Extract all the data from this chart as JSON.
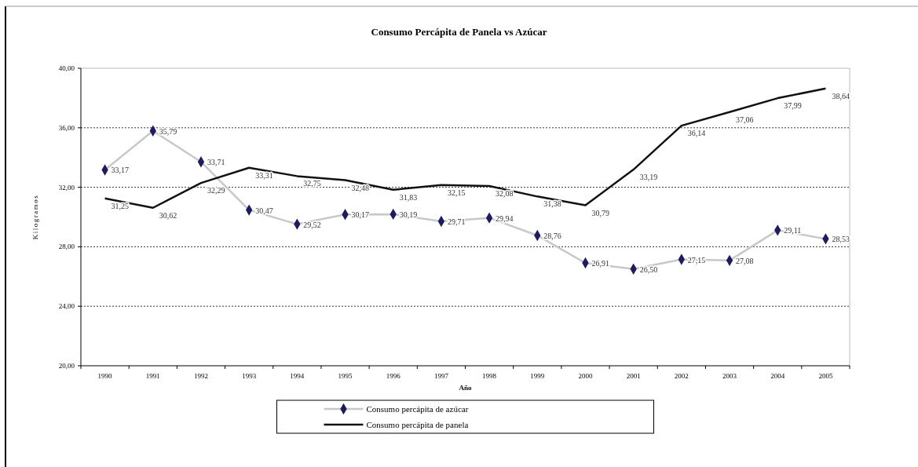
{
  "chart_data": {
    "type": "line",
    "title": "Consumo Percápita de Panela vs Azúcar",
    "xlabel": "Año",
    "ylabel": "Kilogramos",
    "categories": [
      "1990",
      "1991",
      "1992",
      "1993",
      "1994",
      "1995",
      "1996",
      "1997",
      "1998",
      "1999",
      "2000",
      "2001",
      "2002",
      "2003",
      "2004",
      "2005"
    ],
    "series": [
      {
        "name": "Consumo percápita de azúcar",
        "color": "#1c1c5e",
        "marker": "diamond",
        "line_style": "solid",
        "values": [
          33.17,
          35.79,
          33.71,
          30.47,
          29.52,
          30.17,
          30.19,
          29.71,
          29.94,
          28.76,
          26.91,
          26.5,
          27.15,
          27.08,
          29.11,
          28.53
        ],
        "value_labels": [
          "33,17",
          "35,79",
          "33,71",
          "30,47",
          "29,52",
          "30,17",
          "30,19",
          "29,71",
          "29,94",
          "28,76",
          "26,91",
          "26,50",
          "27,15",
          "27,08",
          "29,11",
          "28,53"
        ]
      },
      {
        "name": "Consumo percápita de panela",
        "color": "#111111",
        "marker": "none",
        "line_style": "solid",
        "values": [
          31.25,
          30.62,
          32.29,
          33.31,
          32.75,
          32.48,
          31.83,
          32.15,
          32.08,
          31.38,
          30.79,
          33.19,
          36.14,
          37.06,
          37.99,
          38.64
        ],
        "value_labels": [
          "31,25",
          "30,62",
          "32,29",
          "33,31",
          "32,75",
          "32,48",
          "31,83",
          "32,15",
          "32,08",
          "31,38",
          "30,79",
          "33,19",
          "36,14",
          "37,06",
          "37,99",
          "38,64"
        ]
      }
    ],
    "ylim": [
      20,
      40
    ],
    "yticks": [
      {
        "value": 20,
        "label": "20,00"
      },
      {
        "value": 24,
        "label": "24,00"
      },
      {
        "value": 28,
        "label": "28,00"
      },
      {
        "value": 32,
        "label": "32,00"
      },
      {
        "value": 36,
        "label": "36,00"
      },
      {
        "value": 40,
        "label": "40,00"
      }
    ],
    "grid": "y",
    "legend": "bottom"
  }
}
